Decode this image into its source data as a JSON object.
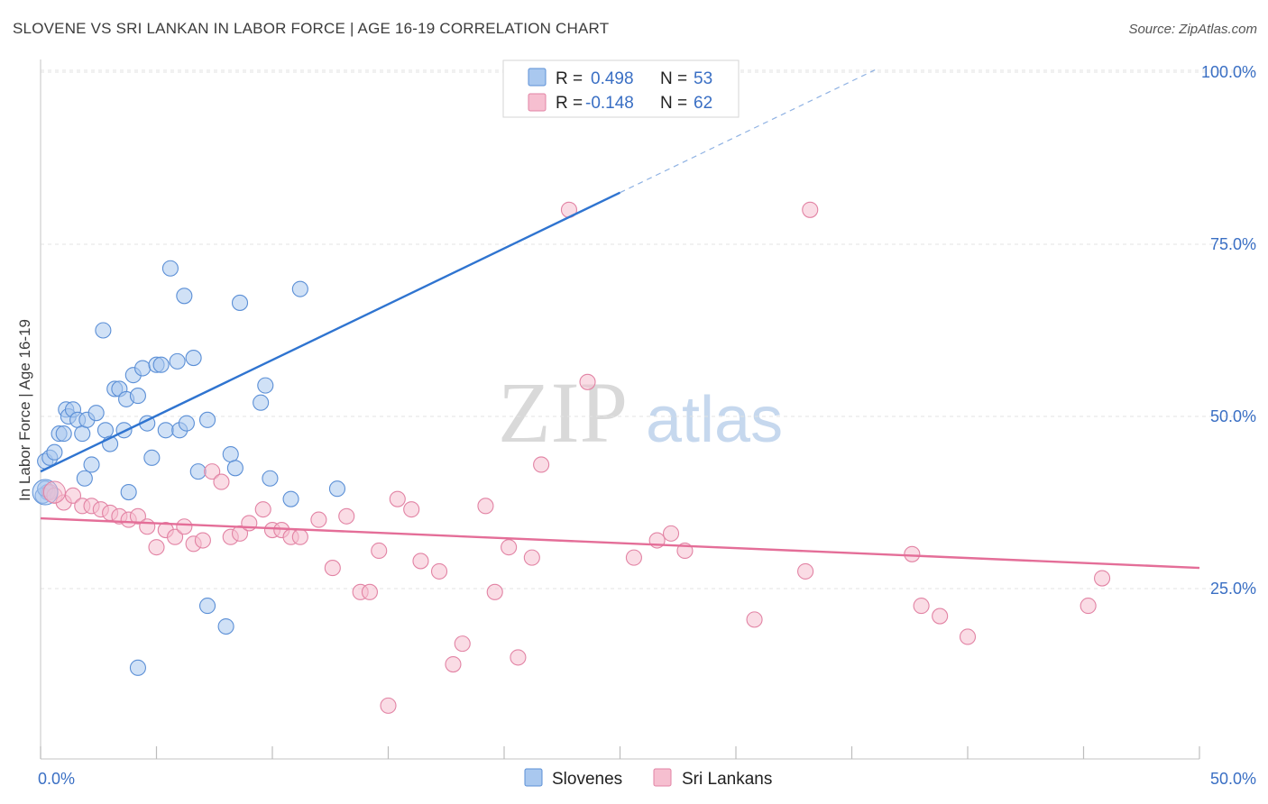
{
  "header": {
    "title": "SLOVENE VS SRI LANKAN IN LABOR FORCE | AGE 16-19 CORRELATION CHART",
    "source": "Source: ZipAtlas.com"
  },
  "legend": {
    "r_label": "R =",
    "n_label": "N =",
    "rows": [
      {
        "r": "0.498",
        "n": "53",
        "color": "#a9c8ef",
        "stroke": "#5b8fd6"
      },
      {
        "r": "-0.148",
        "n": "62",
        "color": "#f6bfd0",
        "stroke": "#e283a4"
      }
    ]
  },
  "watermark": {
    "part1": "ZIP",
    "part2": "atlas"
  },
  "chart_data": {
    "type": "scatter",
    "title": "SLOVENE VS SRI LANKAN IN LABOR FORCE | AGE 16-19 CORRELATION CHART",
    "ylabel": "In Labor Force | Age 16-19",
    "xlabel": "",
    "xlim": [
      0,
      50
    ],
    "ylim": [
      0,
      105
    ],
    "x_tick_labels": [
      "0.0%",
      "50.0%"
    ],
    "y_ticks": [
      25,
      50,
      75,
      100
    ],
    "y_tick_labels": [
      "25.0%",
      "50.0%",
      "75.0%",
      "100.0%"
    ],
    "grid": true,
    "legend_position": "top-center",
    "series": [
      {
        "name": "Slovenes",
        "color": "#a9c8ef",
        "stroke": "#5b8fd6",
        "line_color": "#2f74d0",
        "trend": {
          "x0": 0.0,
          "y0": 42.0,
          "x1": 25.0,
          "y1": 82.5,
          "x_dash_end": 36.0
        },
        "points": [
          [
            0.2,
            43.5
          ],
          [
            0.4,
            44
          ],
          [
            0.6,
            44.8
          ],
          [
            0.8,
            47.5
          ],
          [
            1.0,
            47.5
          ],
          [
            1.1,
            51
          ],
          [
            1.2,
            50
          ],
          [
            1.4,
            51
          ],
          [
            1.6,
            49.5
          ],
          [
            1.8,
            47.5
          ],
          [
            2.0,
            49.5
          ],
          [
            2.2,
            43
          ],
          [
            2.4,
            50.5
          ],
          [
            2.8,
            48
          ],
          [
            3.0,
            46
          ],
          [
            3.2,
            54
          ],
          [
            3.4,
            54
          ],
          [
            3.6,
            48
          ],
          [
            3.7,
            52.5
          ],
          [
            4.0,
            56
          ],
          [
            4.2,
            53
          ],
          [
            4.4,
            57
          ],
          [
            4.6,
            49
          ],
          [
            4.8,
            44
          ],
          [
            5.0,
            57.5
          ],
          [
            5.2,
            57.5
          ],
          [
            5.4,
            48
          ],
          [
            5.6,
            71.5
          ],
          [
            5.9,
            58
          ],
          [
            6.0,
            48
          ],
          [
            6.2,
            67.5
          ],
          [
            6.3,
            49
          ],
          [
            6.6,
            58.5
          ],
          [
            6.8,
            42
          ],
          [
            7.2,
            49.5
          ],
          [
            8.2,
            44.5
          ],
          [
            8.4,
            42.5
          ],
          [
            8.6,
            66.5
          ],
          [
            9.5,
            52
          ],
          [
            9.7,
            54.5
          ],
          [
            9.9,
            41
          ],
          [
            10.8,
            38
          ],
          [
            11.2,
            68.5
          ],
          [
            12.8,
            39.5
          ],
          [
            1.9,
            41
          ],
          [
            3.8,
            39
          ],
          [
            0.3,
            39
          ],
          [
            0.1,
            38.5
          ],
          [
            7.2,
            22.5
          ],
          [
            8.0,
            19.5
          ],
          [
            4.2,
            13.5
          ],
          [
            2.7,
            62.5
          ],
          [
            0.2,
            39.5
          ]
        ]
      },
      {
        "name": "Sri Lankans",
        "color": "#f6bfd0",
        "stroke": "#e283a4",
        "line_color": "#e46e98",
        "trend": {
          "x0": 0.0,
          "y0": 35.2,
          "x1": 50.0,
          "y1": 28.0
        },
        "points": [
          [
            0.4,
            39
          ],
          [
            0.6,
            38.5
          ],
          [
            1.0,
            37.5
          ],
          [
            1.4,
            38.5
          ],
          [
            1.8,
            37
          ],
          [
            2.2,
            37
          ],
          [
            2.6,
            36.5
          ],
          [
            3.0,
            36
          ],
          [
            3.4,
            35.5
          ],
          [
            3.8,
            35
          ],
          [
            4.2,
            35.5
          ],
          [
            4.6,
            34
          ],
          [
            5.0,
            31
          ],
          [
            5.4,
            33.5
          ],
          [
            5.8,
            32.5
          ],
          [
            6.2,
            34
          ],
          [
            6.6,
            31.5
          ],
          [
            7.0,
            32
          ],
          [
            7.4,
            42
          ],
          [
            7.8,
            40.5
          ],
          [
            8.2,
            32.5
          ],
          [
            8.6,
            33
          ],
          [
            9.0,
            34.5
          ],
          [
            9.6,
            36.5
          ],
          [
            10.0,
            33.5
          ],
          [
            10.4,
            33.5
          ],
          [
            10.8,
            32.5
          ],
          [
            11.2,
            32.5
          ],
          [
            12.0,
            35
          ],
          [
            12.6,
            28
          ],
          [
            13.2,
            35.5
          ],
          [
            13.8,
            24.5
          ],
          [
            14.2,
            24.5
          ],
          [
            14.6,
            30.5
          ],
          [
            15.0,
            8
          ],
          [
            15.4,
            38
          ],
          [
            16.0,
            36.5
          ],
          [
            16.4,
            29
          ],
          [
            17.2,
            27.5
          ],
          [
            17.8,
            14
          ],
          [
            18.2,
            17
          ],
          [
            19.2,
            37
          ],
          [
            19.6,
            24.5
          ],
          [
            20.2,
            31
          ],
          [
            20.6,
            15
          ],
          [
            21.2,
            29.5
          ],
          [
            21.6,
            43
          ],
          [
            22.8,
            80
          ],
          [
            23.6,
            55
          ],
          [
            25.6,
            29.5
          ],
          [
            26.6,
            32
          ],
          [
            27.2,
            33
          ],
          [
            27.8,
            30.5
          ],
          [
            30.8,
            20.5
          ],
          [
            33.2,
            80
          ],
          [
            33.0,
            27.5
          ],
          [
            37.6,
            30
          ],
          [
            38.0,
            22.5
          ],
          [
            38.8,
            21
          ],
          [
            40.0,
            18
          ],
          [
            45.2,
            22.5
          ],
          [
            45.8,
            26.5
          ]
        ]
      }
    ]
  },
  "bottom_legend": [
    "Slovenes",
    "Sri Lankans"
  ]
}
